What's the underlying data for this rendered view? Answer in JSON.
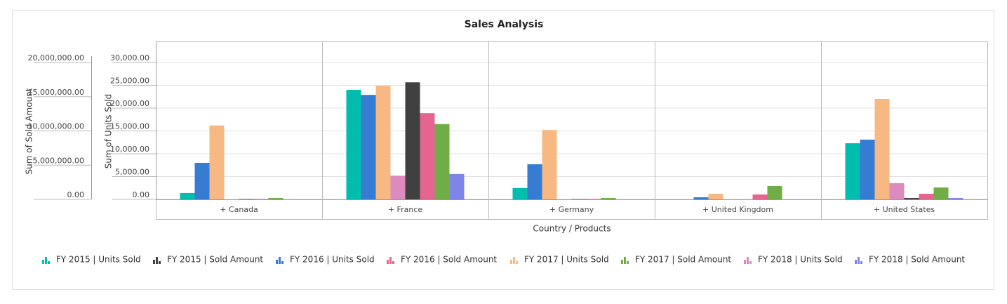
{
  "chart_data": {
    "type": "bar",
    "title": "Sales Analysis",
    "x_axis_title": "Country / Products",
    "y_axis_title": "Sum of Units Sold",
    "y2_axis_title": "Sum of Sold Amount",
    "categories": [
      "+ Canada",
      "+ France",
      "+ Germany",
      "+ United Kingdom",
      "+ United States"
    ],
    "ylim": [
      0,
      30000
    ],
    "yticks": [
      {
        "value": 0,
        "label": "0.00"
      },
      {
        "value": 5000,
        "label": "5,000.00"
      },
      {
        "value": 10000,
        "label": "10,000.00"
      },
      {
        "value": 15000,
        "label": "15,000.00"
      },
      {
        "value": 20000,
        "label": "20,000.00"
      },
      {
        "value": 25000,
        "label": "25,000.00"
      },
      {
        "value": 30000,
        "label": "30,000.00"
      }
    ],
    "y2lim": [
      0,
      20000000
    ],
    "y2ticks": [
      {
        "value": 0,
        "label": "0.00"
      },
      {
        "value": 5000000,
        "label": "5,000,000.00"
      },
      {
        "value": 10000000,
        "label": "10,000,000.00"
      },
      {
        "value": 15000000,
        "label": "15,000,000.00"
      },
      {
        "value": 20000000,
        "label": "20,000,000.00"
      }
    ],
    "grid": true,
    "series": [
      {
        "name": "FY 2015 | Units Sold",
        "color": "#00bdae",
        "axis": "y",
        "values": [
          1400,
          24000,
          2500,
          0,
          12300
        ]
      },
      {
        "name": "FY 2015 | Sold Amount",
        "color": "#404041",
        "axis": "y2",
        "values": [
          50000,
          17100000,
          40000,
          0,
          200000
        ]
      },
      {
        "name": "FY 2016 | Units Sold",
        "color": "#357cd2",
        "axis": "y",
        "values": [
          8000,
          22900,
          7700,
          460,
          13100
        ]
      },
      {
        "name": "FY 2016 | Sold Amount",
        "color": "#e56590",
        "axis": "y2",
        "values": [
          60000,
          12600000,
          60000,
          720000,
          820000
        ]
      },
      {
        "name": "FY 2017 | Units Sold",
        "color": "#f8b883",
        "axis": "y",
        "values": [
          16200,
          24900,
          15200,
          1230,
          22000
        ]
      },
      {
        "name": "FY 2017 | Sold Amount",
        "color": "#70ad47",
        "axis": "y2",
        "values": [
          200000,
          11000000,
          200000,
          1950000,
          1740000
        ]
      },
      {
        "name": "FY 2018 | Units Sold",
        "color": "#dd8abd",
        "axis": "y",
        "values": [
          0,
          5200,
          0,
          0,
          3540
        ]
      },
      {
        "name": "FY 2018 | Sold Amount",
        "color": "#7f84e8",
        "axis": "y2",
        "values": [
          0,
          3700000,
          0,
          0,
          200000
        ]
      }
    ]
  }
}
